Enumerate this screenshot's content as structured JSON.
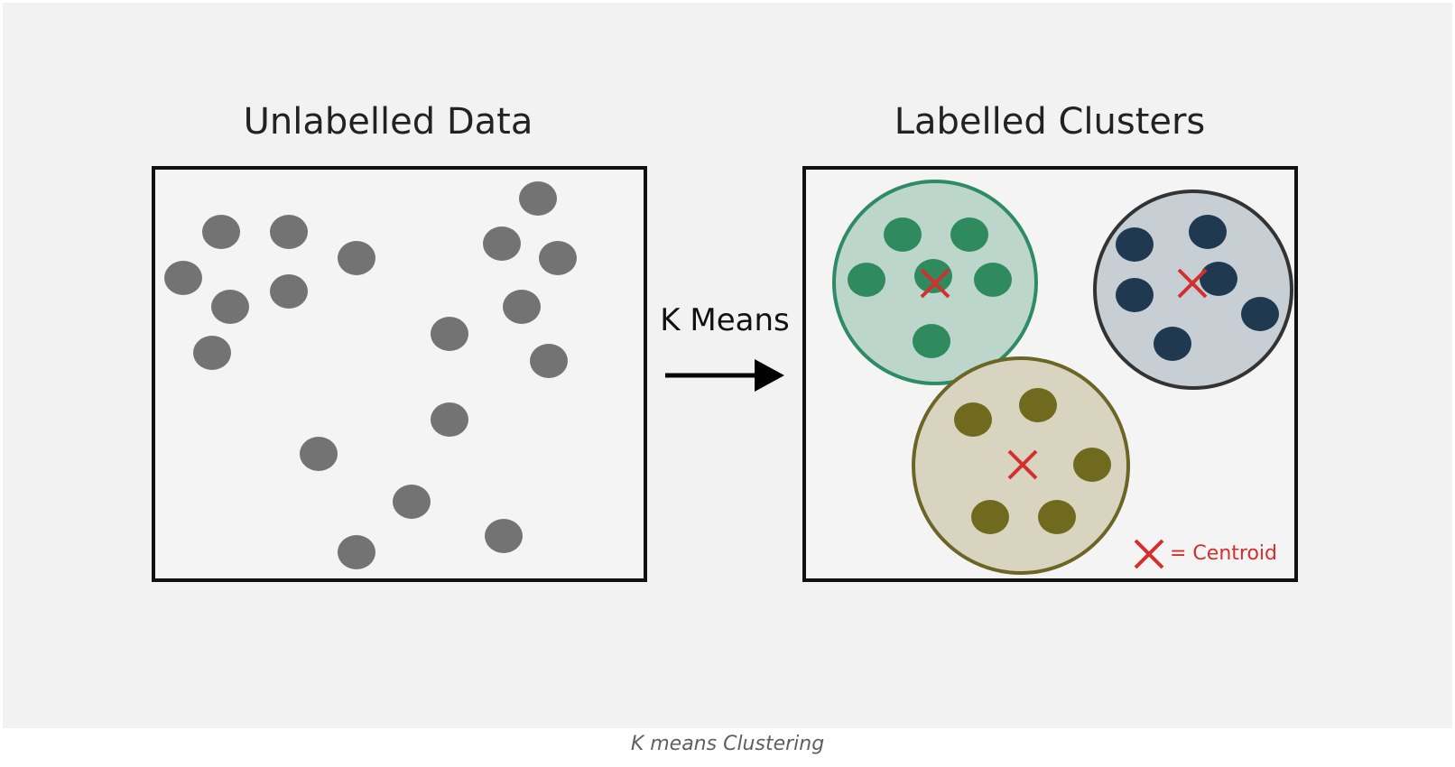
{
  "left_panel": {
    "title": "Unlabelled Data",
    "point_color": "#737373"
  },
  "arrow": {
    "label": "K Means"
  },
  "right_panel": {
    "title": "Labelled Clusters",
    "clusters": [
      {
        "name": "green",
        "fill": "#bcd6cb",
        "stroke": "#2f8a66",
        "point_color": "#2f8a5e"
      },
      {
        "name": "navy",
        "fill": "#c8cfd4",
        "stroke": "#333333",
        "point_color": "#1f3a50"
      },
      {
        "name": "olive",
        "fill": "#d8d4c0",
        "stroke": "#6b6526",
        "point_color": "#706a1e"
      }
    ],
    "centroid_color": "#d32f2f",
    "legend": {
      "icon": "centroid-x-icon",
      "label": "= Centroid"
    }
  },
  "caption": "K means Clustering"
}
